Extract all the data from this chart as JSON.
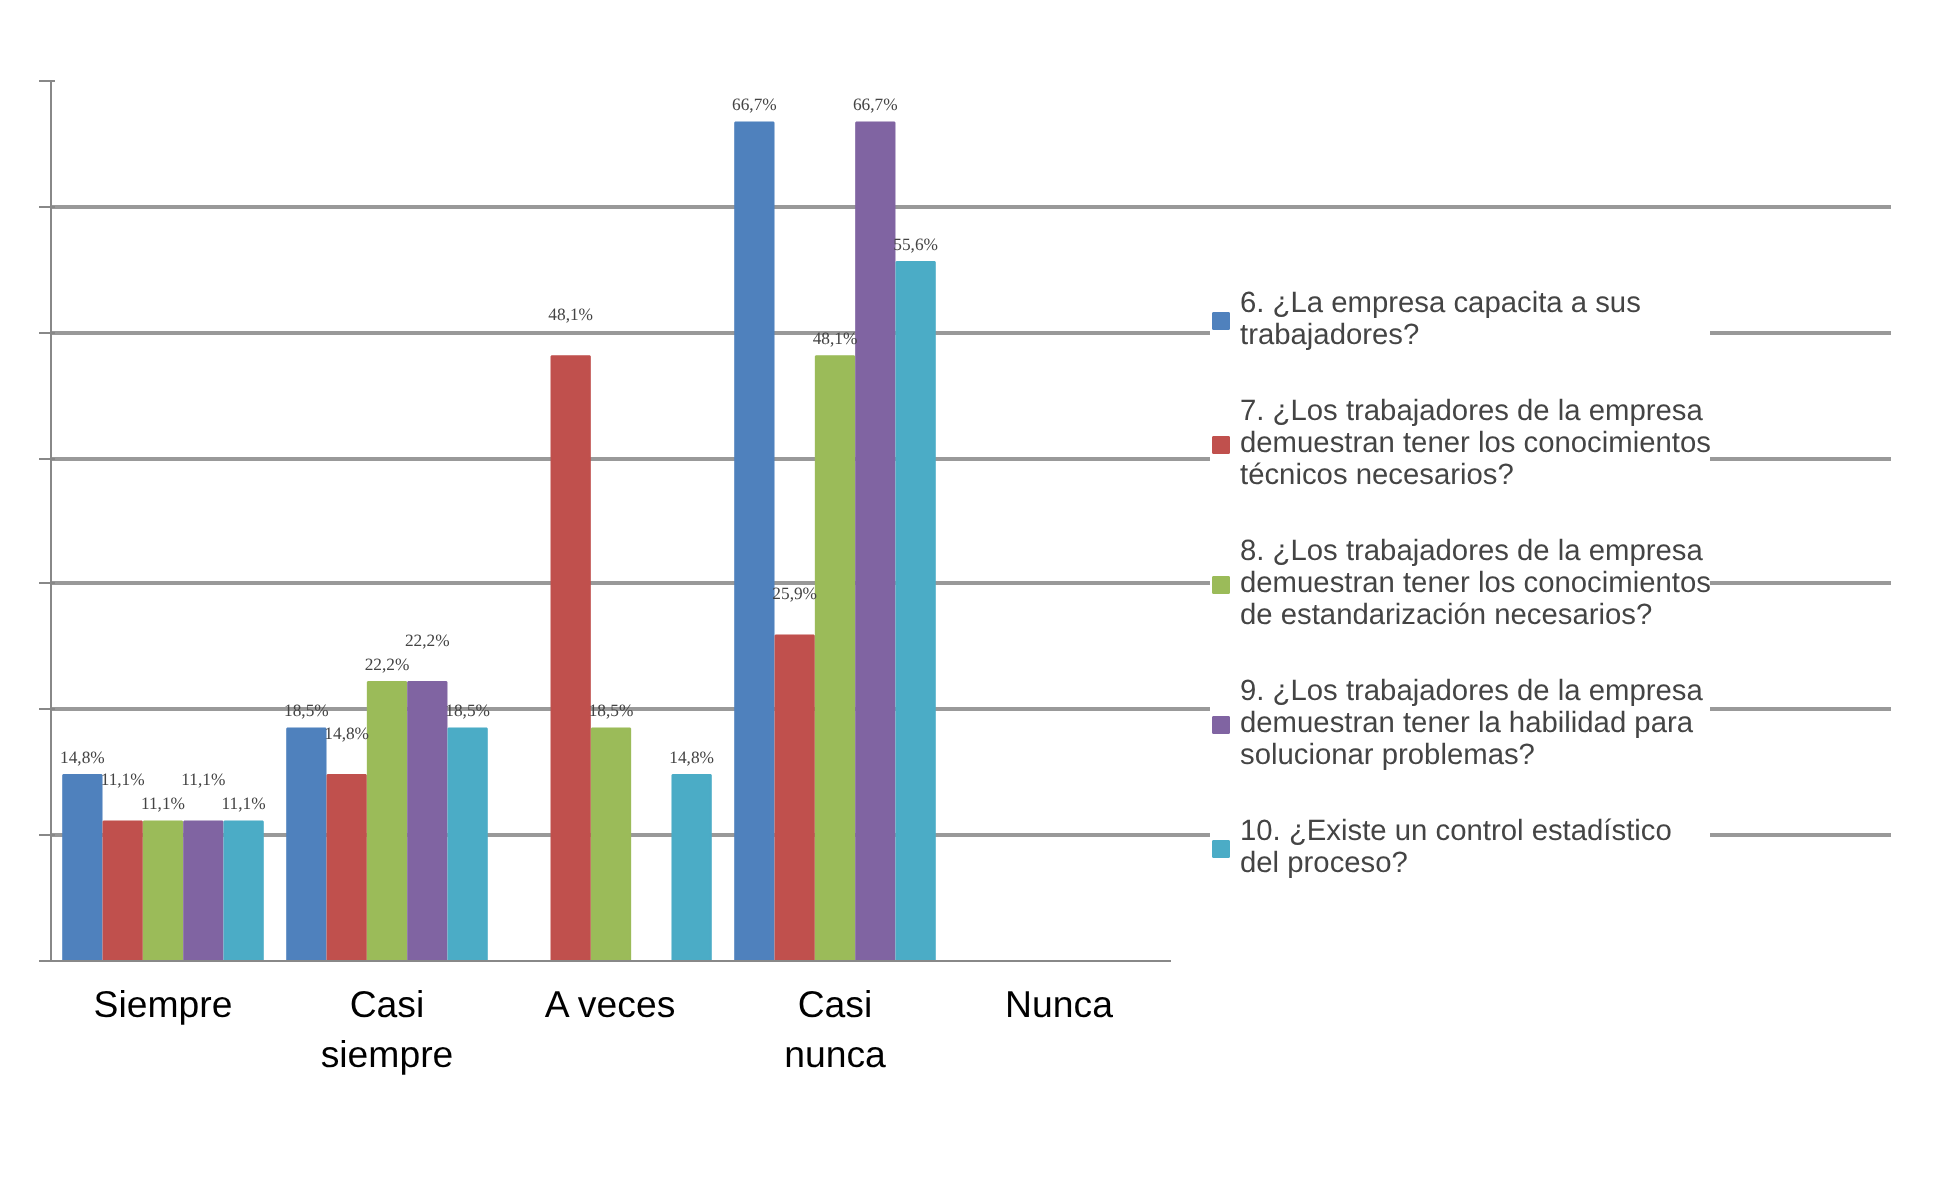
{
  "chart_data": {
    "type": "bar",
    "categories": [
      "Siempre",
      "Casi siempre",
      "A veces",
      "Casi nunca",
      "Nunca"
    ],
    "series": [
      {
        "name": "6. ¿La empresa capacita a sus trabajadores?",
        "color": "#4f81bd",
        "values": [
          14.8,
          18.5,
          0,
          66.7,
          0
        ],
        "value_labels": [
          "14,8%",
          "18,5%",
          null,
          "66,7%",
          null
        ]
      },
      {
        "name": "7. ¿Los trabajadores de la empresa demuestran tener los conocimientos técnicos necesarios?",
        "color": "#c0504d",
        "values": [
          11.1,
          14.8,
          48.1,
          25.9,
          0
        ],
        "value_labels": [
          "11,1%",
          "14,8%",
          "48,1%",
          "25,9%",
          null
        ]
      },
      {
        "name": "8. ¿Los trabajadores de la empresa demuestran tener los conocimientos de estandarización necesarios?",
        "color": "#9bbb59",
        "values": [
          11.1,
          22.2,
          18.5,
          48.1,
          0
        ],
        "value_labels": [
          "11,1%",
          "22,2%",
          "18,5%",
          "48,1%",
          null
        ]
      },
      {
        "name": "9. ¿Los trabajadores de la empresa demuestran tener la habilidad para solucionar problemas?",
        "color": "#8064a2",
        "values": [
          11.1,
          22.2,
          0,
          66.7,
          0
        ],
        "value_labels": [
          "11,1%",
          "22,2%",
          null,
          "66,7%",
          null
        ]
      },
      {
        "name": "10. ¿Existe un control estadístico del proceso?",
        "color": "#4bacc6",
        "values": [
          11.1,
          18.5,
          14.8,
          55.6,
          0
        ],
        "value_labels": [
          "11,1%",
          "18,5%",
          "14,8%",
          "55,6%",
          null
        ]
      }
    ],
    "ylim": [
      0,
      70
    ],
    "yticks": [
      {
        "value": 0,
        "label": null
      },
      {
        "value": 10,
        "label": null
      },
      {
        "value": 20,
        "label": null
      },
      {
        "value": 30,
        "label": null
      },
      {
        "value": 40,
        "label": null
      },
      {
        "value": 50,
        "label": null
      },
      {
        "value": 60,
        "label": null
      },
      {
        "value": 70,
        "label": null
      }
    ],
    "tick_labels": "x",
    "grid": "y",
    "legend": "right"
  }
}
